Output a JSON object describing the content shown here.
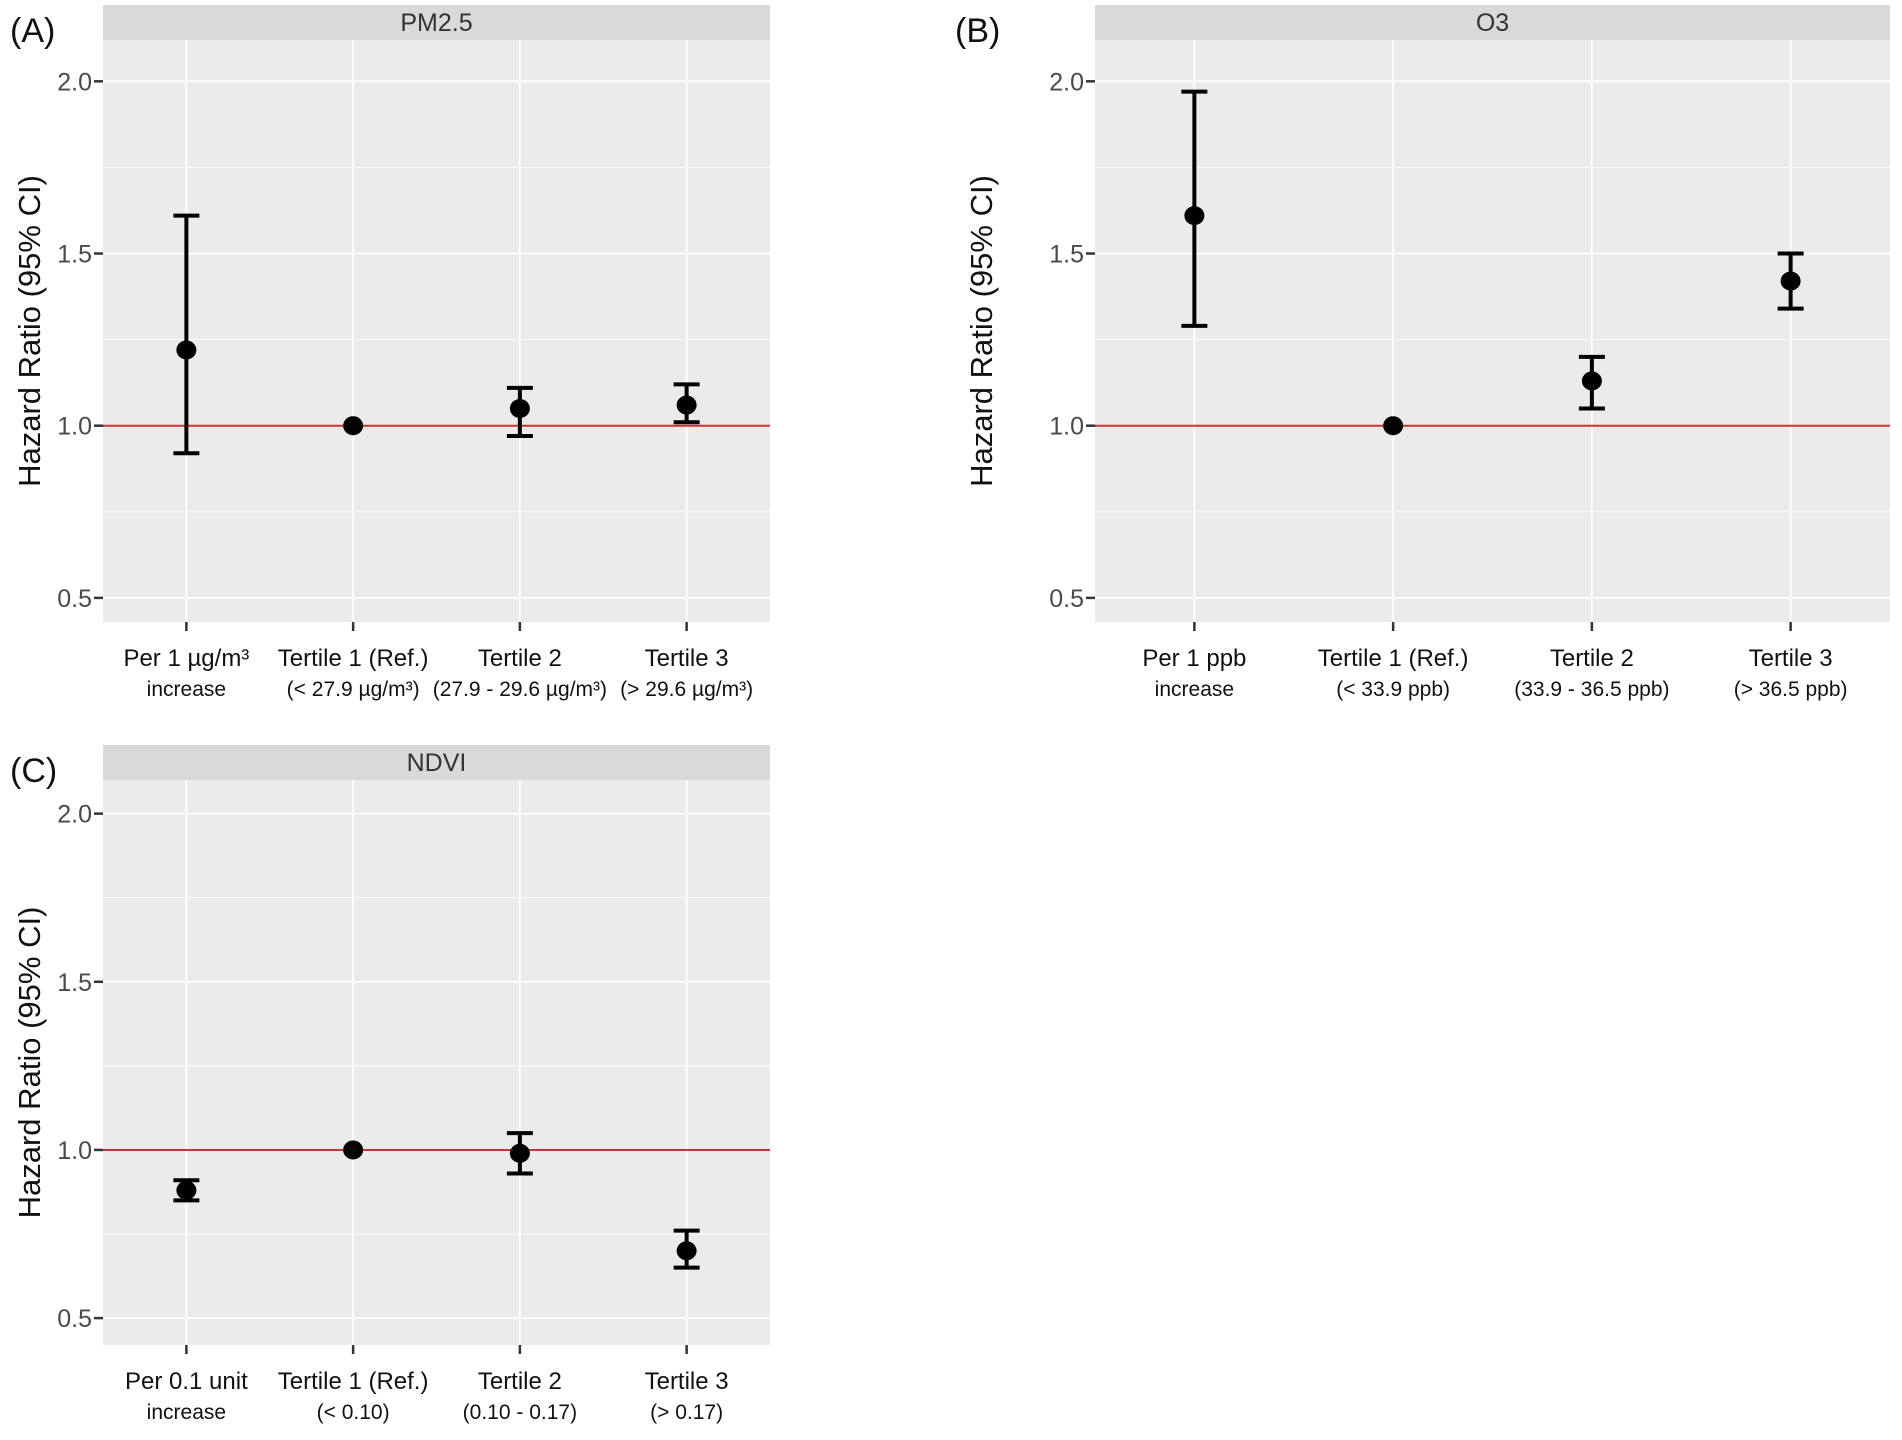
{
  "figure": {
    "y_axis_title": "Hazard Ratio (95% CI)",
    "colors": {
      "panel_bg": "#ebebeb",
      "strip_bg": "#d9d9d9",
      "grid_major": "#ffffff",
      "grid_minor": "#f5f5f5",
      "ref_line": "#cc3333",
      "point": "#000000",
      "tick_mark": "#333333",
      "tick_text": "#4a4a4a",
      "label_text": "#111111"
    }
  },
  "chart_data": [
    {
      "type": "scatter",
      "panel_label": "(A)",
      "title": "PM2.5",
      "ylabel": "Hazard Ratio (95% CI)",
      "xlabel": "",
      "ylim": [
        0.43,
        2.12
      ],
      "y_ticks": [
        "0.5",
        "1.0",
        "1.5",
        "2.0"
      ],
      "y_tick_values": [
        0.5,
        1.0,
        1.5,
        2.0
      ],
      "y_minor_values": [
        0.75,
        1.25,
        1.75
      ],
      "ref_line_y": 1.0,
      "grid": true,
      "legend": "none",
      "categories": [
        {
          "line1": "Per 1 µg/m³",
          "line2": "increase"
        },
        {
          "line1": "Tertile 1 (Ref.)",
          "line2": "(< 27.9 µg/m³)"
        },
        {
          "line1": "Tertile 2",
          "line2": "(27.9 - 29.6 µg/m³)"
        },
        {
          "line1": "Tertile 3",
          "line2": "(> 29.6 µg/m³)"
        }
      ],
      "series": [
        {
          "name": "Hazard Ratio (95% CI)",
          "values": [
            {
              "hr": 1.22,
              "ci_low": 0.92,
              "ci_high": 1.61,
              "reference": false
            },
            {
              "hr": 1.0,
              "ci_low": 1.0,
              "ci_high": 1.0,
              "reference": true
            },
            {
              "hr": 1.05,
              "ci_low": 0.97,
              "ci_high": 1.11,
              "reference": false
            },
            {
              "hr": 1.06,
              "ci_low": 1.01,
              "ci_high": 1.12,
              "reference": false
            }
          ]
        }
      ]
    },
    {
      "type": "scatter",
      "panel_label": "(B)",
      "title": "O3",
      "ylabel": "Hazard Ratio (95% CI)",
      "xlabel": "",
      "ylim": [
        0.43,
        2.12
      ],
      "y_ticks": [
        "0.5",
        "1.0",
        "1.5",
        "2.0"
      ],
      "y_tick_values": [
        0.5,
        1.0,
        1.5,
        2.0
      ],
      "y_minor_values": [
        0.75,
        1.25,
        1.75
      ],
      "ref_line_y": 1.0,
      "grid": true,
      "legend": "none",
      "categories": [
        {
          "line1": "Per 1 ppb",
          "line2": "increase"
        },
        {
          "line1": "Tertile 1 (Ref.)",
          "line2": "(< 33.9 ppb)"
        },
        {
          "line1": "Tertile 2",
          "line2": "(33.9 - 36.5 ppb)"
        },
        {
          "line1": "Tertile 3",
          "line2": "(> 36.5 ppb)"
        }
      ],
      "series": [
        {
          "name": "Hazard Ratio (95% CI)",
          "values": [
            {
              "hr": 1.61,
              "ci_low": 1.29,
              "ci_high": 1.97,
              "reference": false
            },
            {
              "hr": 1.0,
              "ci_low": 1.0,
              "ci_high": 1.0,
              "reference": true
            },
            {
              "hr": 1.13,
              "ci_low": 1.05,
              "ci_high": 1.2,
              "reference": false
            },
            {
              "hr": 1.42,
              "ci_low": 1.34,
              "ci_high": 1.5,
              "reference": false
            }
          ]
        }
      ]
    },
    {
      "type": "scatter",
      "panel_label": "(C)",
      "title": "NDVI",
      "ylabel": "Hazard Ratio (95% CI)",
      "xlabel": "",
      "ylim": [
        0.42,
        2.1
      ],
      "y_ticks": [
        "0.5",
        "1.0",
        "1.5",
        "2.0"
      ],
      "y_tick_values": [
        0.5,
        1.0,
        1.5,
        2.0
      ],
      "y_minor_values": [
        0.75,
        1.25,
        1.75
      ],
      "ref_line_y": 1.0,
      "grid": true,
      "legend": "none",
      "categories": [
        {
          "line1": "Per 0.1 unit",
          "line2": "increase"
        },
        {
          "line1": "Tertile 1 (Ref.)",
          "line2": "(< 0.10)"
        },
        {
          "line1": "Tertile 2",
          "line2": "(0.10 - 0.17)"
        },
        {
          "line1": "Tertile 3",
          "line2": "(> 0.17)"
        }
      ],
      "series": [
        {
          "name": "Hazard Ratio (95% CI)",
          "values": [
            {
              "hr": 0.88,
              "ci_low": 0.85,
              "ci_high": 0.91,
              "reference": false
            },
            {
              "hr": 1.0,
              "ci_low": 1.0,
              "ci_high": 1.0,
              "reference": true
            },
            {
              "hr": 0.99,
              "ci_low": 0.93,
              "ci_high": 1.05,
              "reference": false
            },
            {
              "hr": 0.7,
              "ci_low": 0.65,
              "ci_high": 0.76,
              "reference": false
            }
          ]
        }
      ]
    }
  ]
}
